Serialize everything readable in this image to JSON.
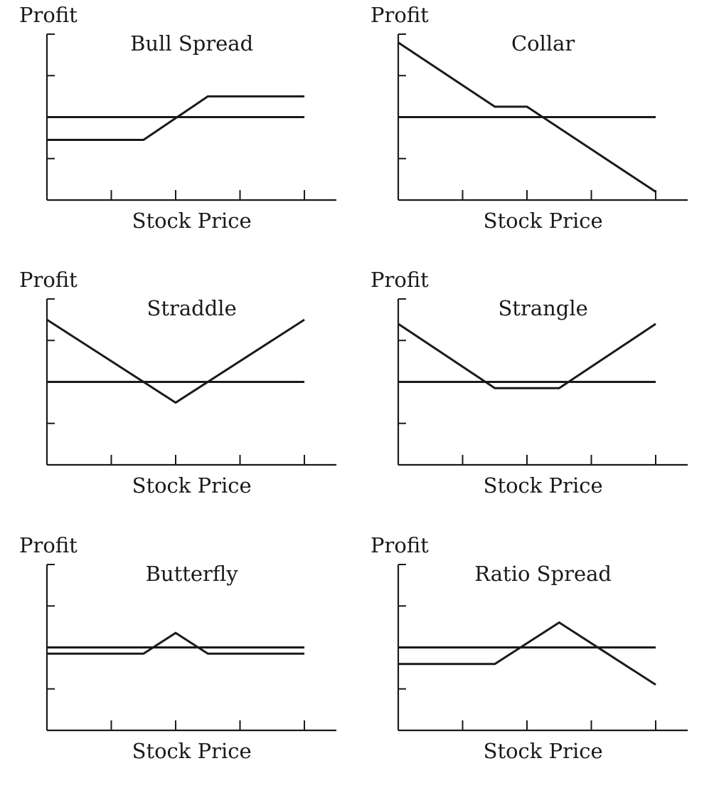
{
  "chart_data": [
    {
      "type": "line",
      "title": "Bull Spread",
      "ylabel": "Profit",
      "xlabel": "Stock Price",
      "x": [
        0,
        1.5,
        2.5,
        4
      ],
      "y": [
        -0.55,
        -0.55,
        0.5,
        0.5
      ],
      "xlim": [
        0,
        4
      ],
      "ylim": [
        -2,
        2
      ],
      "xticks": [
        1,
        2,
        3,
        4
      ],
      "yticks": [
        -1,
        1,
        2
      ],
      "zero_line": true,
      "grid": false
    },
    {
      "type": "line",
      "title": "Collar",
      "ylabel": "Profit",
      "xlabel": "Stock Price",
      "x": [
        0,
        1.5,
        2,
        4
      ],
      "y": [
        1.8,
        0.25,
        0.25,
        -1.8
      ],
      "xlim": [
        0,
        4
      ],
      "ylim": [
        -2,
        2
      ],
      "xticks": [
        1,
        2,
        3,
        4
      ],
      "yticks": [
        -1,
        1,
        2
      ],
      "zero_line": true,
      "grid": false
    },
    {
      "type": "line",
      "title": "Straddle",
      "ylabel": "Profit",
      "xlabel": "Stock Price",
      "x": [
        0,
        2,
        4
      ],
      "y": [
        1.5,
        -0.5,
        1.5
      ],
      "xlim": [
        0,
        4
      ],
      "ylim": [
        -2,
        2
      ],
      "xticks": [
        1,
        2,
        3,
        4
      ],
      "yticks": [
        -1,
        1,
        2
      ],
      "zero_line": true,
      "grid": false
    },
    {
      "type": "line",
      "title": "Strangle",
      "ylabel": "Profit",
      "xlabel": "Stock Price",
      "x": [
        0,
        1.5,
        2.5,
        4
      ],
      "y": [
        1.4,
        -0.15,
        -0.15,
        1.4
      ],
      "xlim": [
        0,
        4
      ],
      "ylim": [
        -2,
        2
      ],
      "xticks": [
        1,
        2,
        3,
        4
      ],
      "yticks": [
        -1,
        1,
        2
      ],
      "zero_line": true,
      "grid": false
    },
    {
      "type": "line",
      "title": "Butterfly",
      "ylabel": "Profit",
      "xlabel": "Stock Price",
      "x": [
        0,
        1.5,
        2,
        2.5,
        4
      ],
      "y": [
        -0.15,
        -0.15,
        0.35,
        -0.15,
        -0.15
      ],
      "xlim": [
        0,
        4
      ],
      "ylim": [
        -2,
        2
      ],
      "xticks": [
        1,
        2,
        3,
        4
      ],
      "yticks": [
        -1,
        1,
        2
      ],
      "zero_line": true,
      "grid": false
    },
    {
      "type": "line",
      "title": "Ratio Spread",
      "ylabel": "Profit",
      "xlabel": "Stock Price",
      "x": [
        0,
        1.5,
        2.5,
        4
      ],
      "y": [
        -0.4,
        -0.4,
        0.6,
        -0.9
      ],
      "xlim": [
        0,
        4
      ],
      "ylim": [
        -2,
        2
      ],
      "xticks": [
        1,
        2,
        3,
        4
      ],
      "yticks": [
        -1,
        1,
        2
      ],
      "zero_line": true,
      "grid": false
    }
  ]
}
